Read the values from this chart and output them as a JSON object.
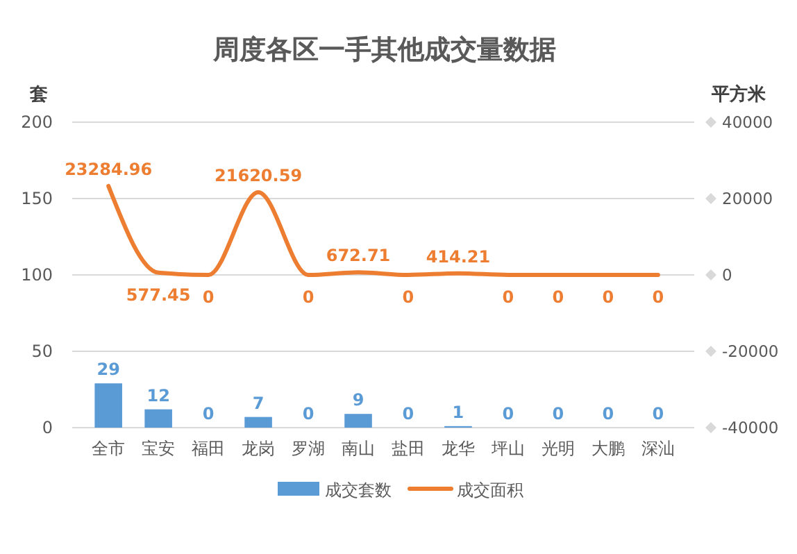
{
  "chart_data": {
    "type": "bar",
    "title": "周度各区一手其他成交量数据",
    "ylabel": "套",
    "y2label": "平方米",
    "categories": [
      "全市",
      "宝安",
      "福田",
      "龙岗",
      "罗湖",
      "南山",
      "盐田",
      "龙华",
      "坪山",
      "光明",
      "大鹏",
      "深汕"
    ],
    "series": [
      {
        "name": "成交套数",
        "color": "#5b9bd5",
        "values": [
          29,
          12,
          0,
          7,
          0,
          9,
          0,
          1,
          0,
          0,
          0,
          0
        ]
      },
      {
        "name": "成交面积",
        "type": "line",
        "axis": "y2",
        "color": "#ed7d31",
        "values": [
          23284.96,
          577.45,
          0,
          21620.59,
          0,
          672.71,
          0,
          414.21,
          0,
          0,
          0,
          0
        ]
      }
    ],
    "ylim": [
      0,
      200
    ],
    "yticks": [
      0,
      50,
      100,
      150,
      200
    ],
    "y2lim": [
      -40000,
      40000
    ],
    "y2ticks": [
      -40000,
      -20000,
      0,
      20000,
      40000
    ],
    "grid": "y",
    "legend": "bottom",
    "data_labels": true,
    "marker": "none",
    "line_style": "solid"
  }
}
